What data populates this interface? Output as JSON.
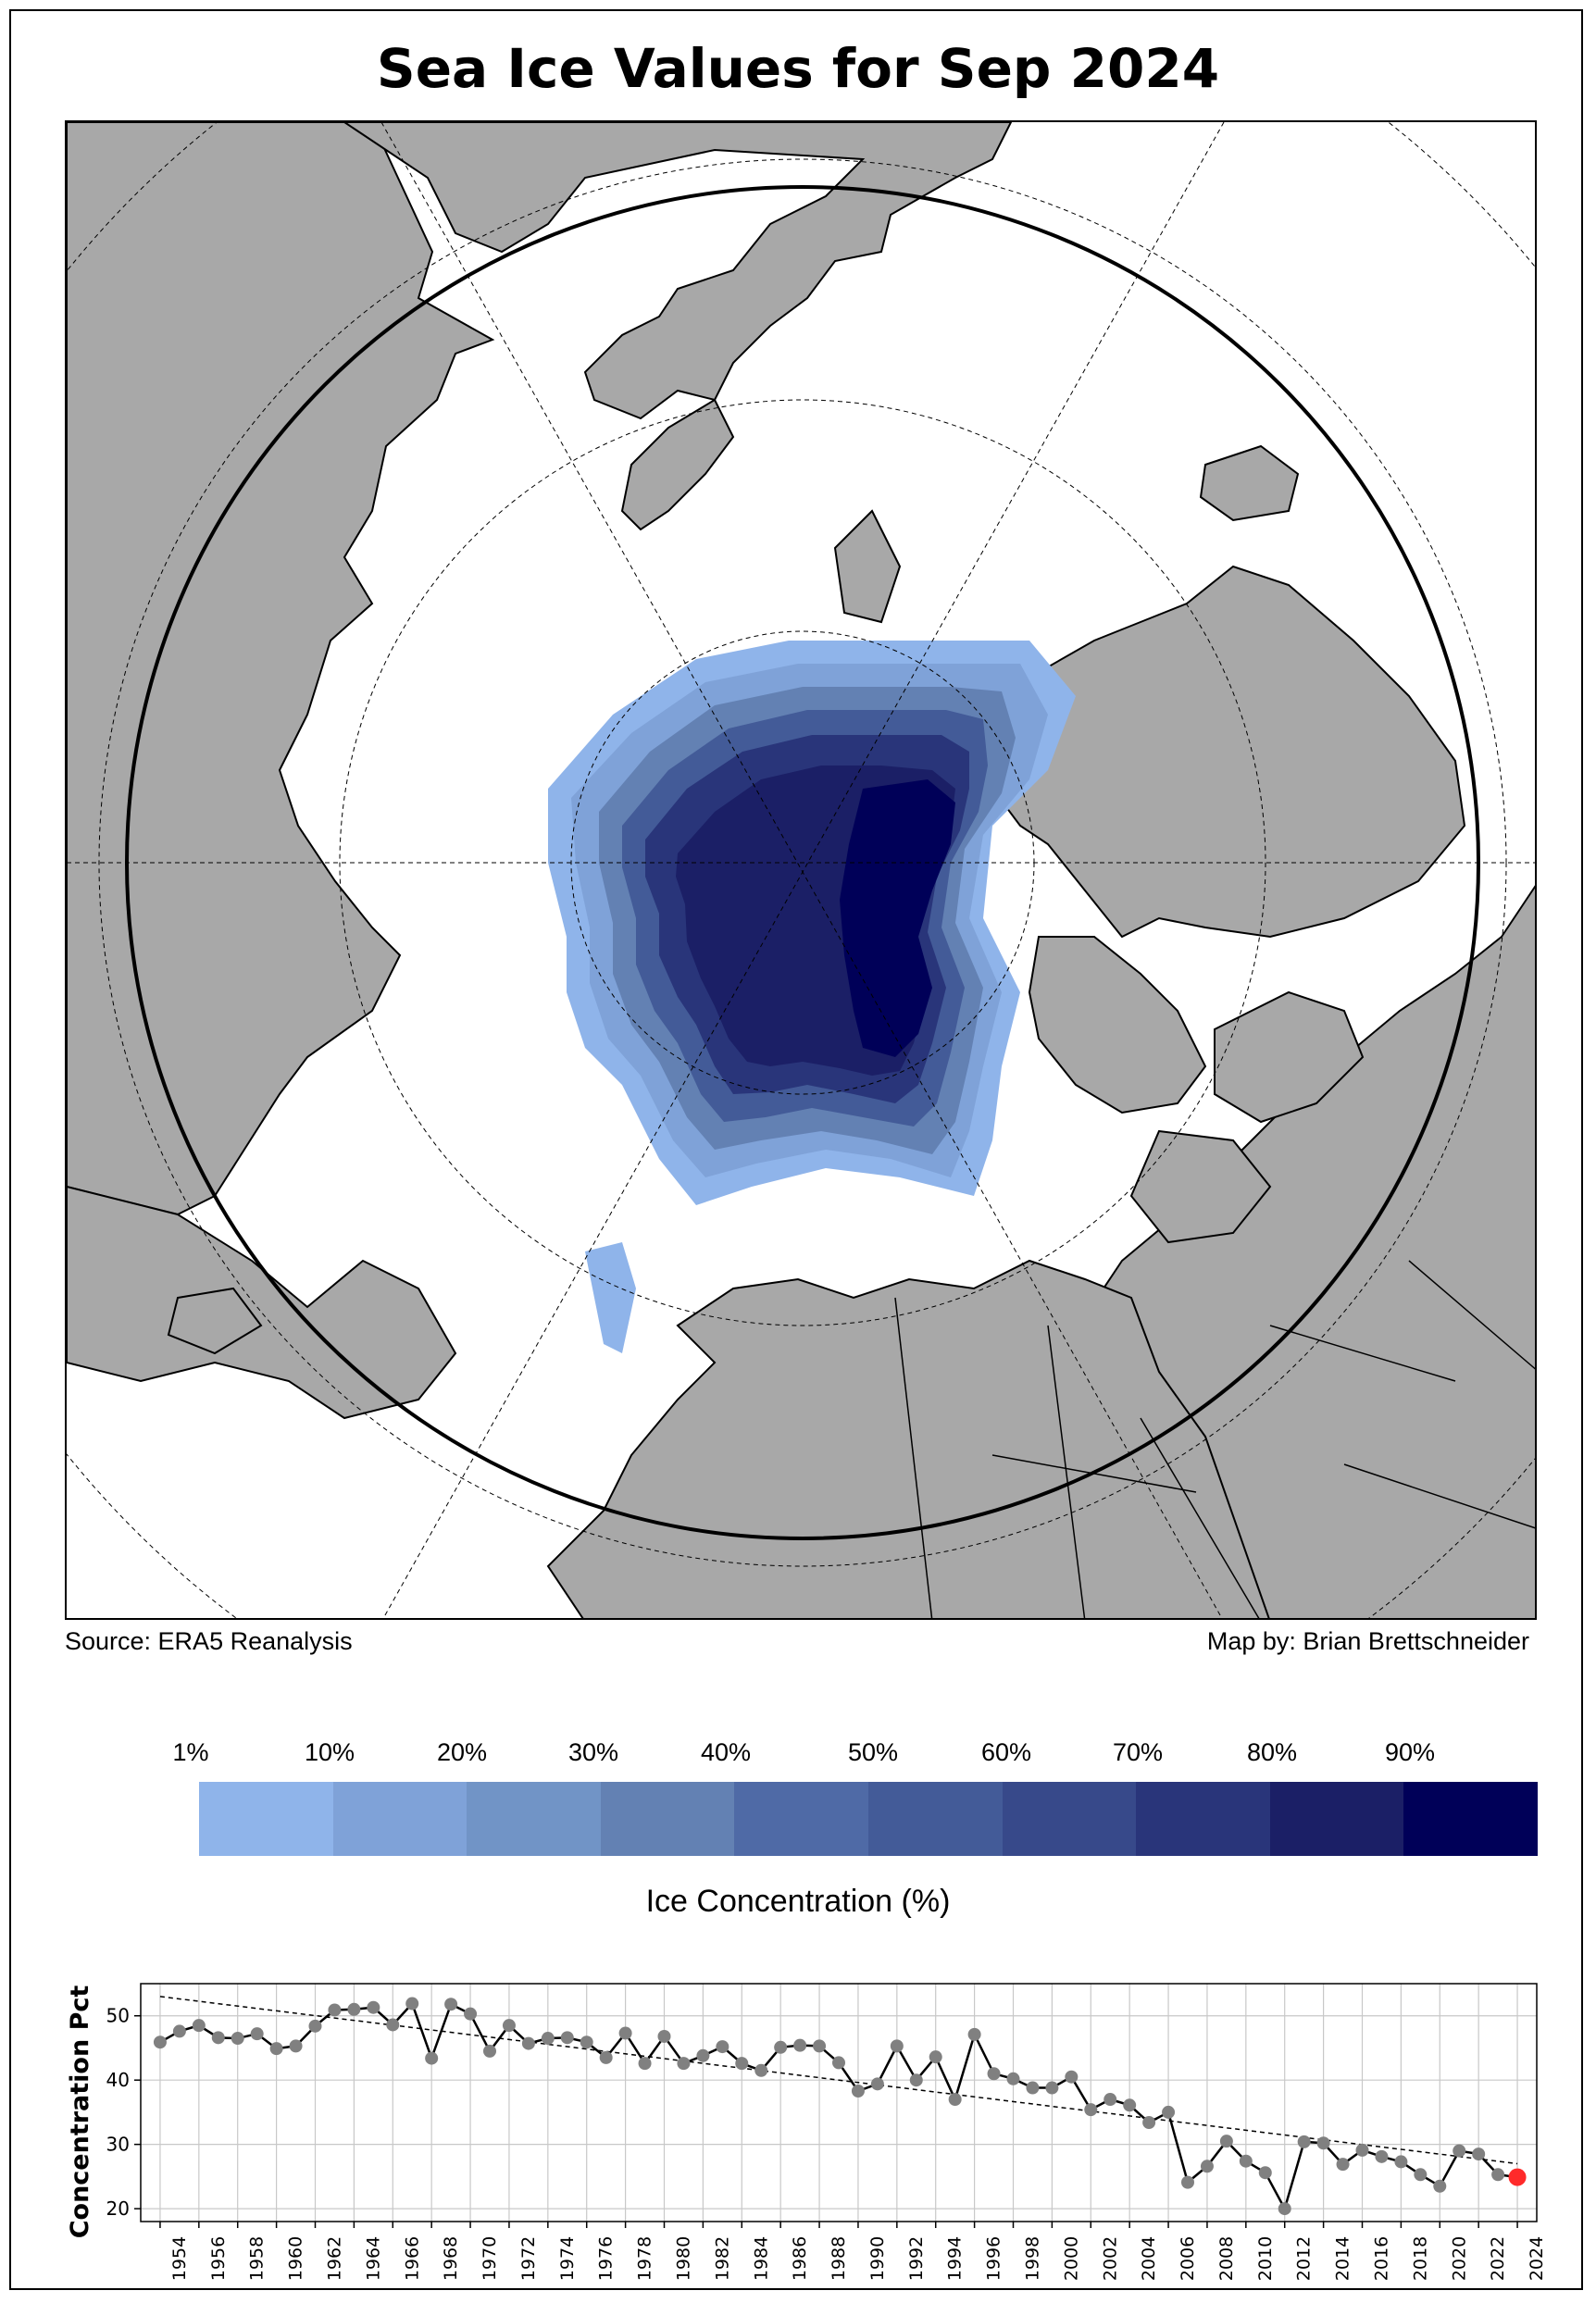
{
  "title": "Sea Ice Values for Sep 2024",
  "source": "Source: ERA5 Reanalysis",
  "credit": "Map by: Brian Brettschneider",
  "colors": {
    "land": "#a8a8a8",
    "ocean": "#ffffff",
    "ice_scale": [
      "#8fb4ea",
      "#7fa2d8",
      "#7194c6",
      "#6381b3",
      "#4f6aa6",
      "#435b98",
      "#37498a",
      "#29357a",
      "#1b1f66",
      "#000058"
    ],
    "trend_marker": "#808080",
    "latest_marker": "#ff2a2a"
  },
  "colorbar": {
    "ticks": [
      "1%",
      "10%",
      "20%",
      "30%",
      "40%",
      "50%",
      "60%",
      "70%",
      "80%",
      "90%"
    ],
    "label": "Ice Concentration (%)"
  },
  "chart_data": {
    "type": "line",
    "ylabel": "Concentration Pct",
    "xlabel": "",
    "ylim": [
      18,
      55
    ],
    "xlim": [
      1953,
      2025
    ],
    "grid": true,
    "yticks": [
      20,
      30,
      40,
      50
    ],
    "xticks": [
      "1954",
      "1956",
      "1958",
      "1960",
      "1962",
      "1964",
      "1966",
      "1968",
      "1970",
      "1972",
      "1974",
      "1976",
      "1978",
      "1980",
      "1982",
      "1984",
      "1986",
      "1988",
      "1990",
      "1992",
      "1994",
      "1996",
      "1998",
      "2000",
      "2002",
      "2004",
      "2006",
      "2008",
      "2010",
      "2012",
      "2014",
      "2016",
      "2018",
      "2020",
      "2022",
      "2024"
    ],
    "x": [
      1954,
      1955,
      1956,
      1957,
      1958,
      1959,
      1960,
      1961,
      1962,
      1963,
      1964,
      1965,
      1966,
      1967,
      1968,
      1969,
      1970,
      1971,
      1972,
      1973,
      1974,
      1975,
      1976,
      1977,
      1978,
      1979,
      1980,
      1981,
      1982,
      1983,
      1984,
      1985,
      1986,
      1987,
      1988,
      1989,
      1990,
      1991,
      1992,
      1993,
      1994,
      1995,
      1996,
      1997,
      1998,
      1999,
      2000,
      2001,
      2002,
      2003,
      2004,
      2005,
      2006,
      2007,
      2008,
      2009,
      2010,
      2011,
      2012,
      2013,
      2014,
      2015,
      2016,
      2017,
      2018,
      2019,
      2020,
      2021,
      2022,
      2023,
      2024
    ],
    "values": [
      45.9,
      47.6,
      48.5,
      46.6,
      46.5,
      47.2,
      44.9,
      45.3,
      48.4,
      50.9,
      51.0,
      51.3,
      48.6,
      51.9,
      43.4,
      51.8,
      50.3,
      44.5,
      48.5,
      45.7,
      46.5,
      46.6,
      45.9,
      43.5,
      47.3,
      42.6,
      46.8,
      42.6,
      43.8,
      45.2,
      42.6,
      41.5,
      45.1,
      45.4,
      45.3,
      42.7,
      38.3,
      39.4,
      45.3,
      40.0,
      43.6,
      37.0,
      47.1,
      41.0,
      40.2,
      38.8,
      38.8,
      40.5,
      35.4,
      37.0,
      36.1,
      33.4,
      35.0,
      24.1,
      26.6,
      30.5,
      27.4,
      25.6,
      20.0,
      30.4,
      30.2,
      26.9,
      29.1,
      28.1,
      27.3,
      25.3,
      23.5,
      29.0,
      28.5,
      25.3,
      24.9
    ],
    "trend": {
      "x": [
        1954,
        2024
      ],
      "values": [
        53.0,
        27.0
      ]
    },
    "highlight": {
      "x": 2024,
      "value": 24.9
    }
  }
}
